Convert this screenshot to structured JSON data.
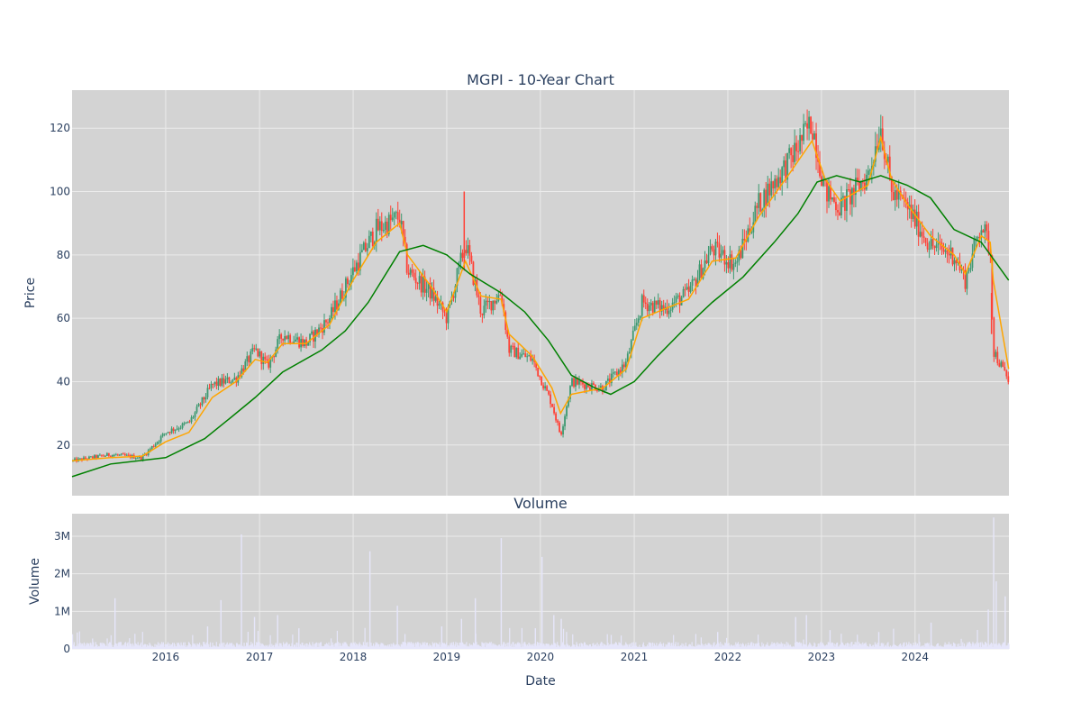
{
  "colors": {
    "plot_bg": "#d3d3d3",
    "grid": "#ebebeb",
    "candle_up": "#3d9970",
    "candle_down": "#ff4136",
    "ma_short": "#ffa500",
    "ma_long": "#008000",
    "volume_bar": "#e6e6fa"
  },
  "chart_data": [
    {
      "type": "candlestick",
      "title": "MGPI - 10-Year Chart",
      "xlabel": "",
      "ylabel": "Price",
      "xlim": [
        "2015-01-01",
        "2025-01-01"
      ],
      "ylim": [
        4,
        132
      ],
      "y_ticks": [
        20,
        40,
        60,
        80,
        100,
        120
      ],
      "grid": true,
      "legend": "none",
      "price_path": [
        [
          "2015-01-01",
          15
        ],
        [
          "2015-06-01",
          17
        ],
        [
          "2015-10-01",
          16
        ],
        [
          "2016-01-01",
          24
        ],
        [
          "2016-04-01",
          27
        ],
        [
          "2016-07-01",
          39
        ],
        [
          "2016-10-01",
          41
        ],
        [
          "2016-12-15",
          50
        ],
        [
          "2017-02-01",
          45
        ],
        [
          "2017-04-01",
          55
        ],
        [
          "2017-07-01",
          52
        ],
        [
          "2017-10-01",
          60
        ],
        [
          "2018-01-01",
          75
        ],
        [
          "2018-04-01",
          88
        ],
        [
          "2018-07-01",
          92
        ],
        [
          "2018-08-01",
          75
        ],
        [
          "2018-11-01",
          68
        ],
        [
          "2019-01-01",
          60
        ],
        [
          "2019-03-15",
          84
        ],
        [
          "2019-05-15",
          62
        ],
        [
          "2019-08-01",
          68
        ],
        [
          "2019-09-01",
          50
        ],
        [
          "2019-12-01",
          47
        ],
        [
          "2020-02-15",
          33
        ],
        [
          "2020-03-20",
          23
        ],
        [
          "2020-05-01",
          40
        ],
        [
          "2020-09-01",
          38
        ],
        [
          "2020-12-01",
          46
        ],
        [
          "2021-02-01",
          65
        ],
        [
          "2021-05-01",
          63
        ],
        [
          "2021-08-01",
          68
        ],
        [
          "2021-11-01",
          82
        ],
        [
          "2022-02-01",
          77
        ],
        [
          "2022-05-01",
          96
        ],
        [
          "2022-09-01",
          110
        ],
        [
          "2022-11-25",
          122
        ],
        [
          "2023-01-15",
          100
        ],
        [
          "2023-03-15",
          95
        ],
        [
          "2023-07-01",
          105
        ],
        [
          "2023-08-20",
          121
        ],
        [
          "2023-10-01",
          100
        ],
        [
          "2023-12-01",
          95
        ],
        [
          "2024-03-01",
          83
        ],
        [
          "2024-06-01",
          80
        ],
        [
          "2024-07-15",
          72
        ],
        [
          "2024-09-15",
          90
        ],
        [
          "2024-10-20",
          82
        ],
        [
          "2024-11-01",
          50
        ],
        [
          "2024-12-31",
          40
        ]
      ],
      "ma_short_path": [
        [
          "2015-01-01",
          15
        ],
        [
          "2015-06-01",
          16
        ],
        [
          "2015-10-01",
          16.5
        ],
        [
          "2016-01-01",
          21
        ],
        [
          "2016-04-01",
          24
        ],
        [
          "2016-07-01",
          35
        ],
        [
          "2016-10-01",
          40
        ],
        [
          "2016-12-15",
          47
        ],
        [
          "2017-02-01",
          46
        ],
        [
          "2017-04-01",
          52
        ],
        [
          "2017-07-01",
          52
        ],
        [
          "2017-10-01",
          58
        ],
        [
          "2018-01-01",
          72
        ],
        [
          "2018-04-01",
          84
        ],
        [
          "2018-07-01",
          90
        ],
        [
          "2018-08-01",
          80
        ],
        [
          "2018-11-01",
          70
        ],
        [
          "2019-01-01",
          62
        ],
        [
          "2019-03-15",
          78
        ],
        [
          "2019-05-15",
          67
        ],
        [
          "2019-08-01",
          66
        ],
        [
          "2019-09-01",
          55
        ],
        [
          "2019-12-01",
          48
        ],
        [
          "2020-02-15",
          38
        ],
        [
          "2020-03-20",
          30
        ],
        [
          "2020-05-01",
          36
        ],
        [
          "2020-09-01",
          38
        ],
        [
          "2020-12-01",
          44
        ],
        [
          "2021-02-01",
          60
        ],
        [
          "2021-05-01",
          63
        ],
        [
          "2021-08-01",
          66
        ],
        [
          "2021-11-01",
          78
        ],
        [
          "2022-02-01",
          79
        ],
        [
          "2022-05-01",
          92
        ],
        [
          "2022-09-01",
          106
        ],
        [
          "2022-11-25",
          116
        ],
        [
          "2023-01-15",
          104
        ],
        [
          "2023-03-15",
          97
        ],
        [
          "2023-07-01",
          102
        ],
        [
          "2023-08-20",
          117
        ],
        [
          "2023-10-01",
          104
        ],
        [
          "2023-12-01",
          96
        ],
        [
          "2024-03-01",
          86
        ],
        [
          "2024-06-01",
          80
        ],
        [
          "2024-07-15",
          74
        ],
        [
          "2024-09-15",
          86
        ],
        [
          "2024-10-20",
          84
        ],
        [
          "2024-11-01",
          72
        ],
        [
          "2024-12-31",
          44
        ]
      ],
      "ma_long_path": [
        [
          "2015-01-01",
          10
        ],
        [
          "2015-06-01",
          14
        ],
        [
          "2016-01-01",
          16
        ],
        [
          "2016-06-01",
          22
        ],
        [
          "2016-09-01",
          28
        ],
        [
          "2016-12-15",
          35
        ],
        [
          "2017-04-01",
          43
        ],
        [
          "2017-09-01",
          50
        ],
        [
          "2017-12-01",
          56
        ],
        [
          "2018-03-01",
          65
        ],
        [
          "2018-07-01",
          81
        ],
        [
          "2018-10-01",
          83
        ],
        [
          "2019-01-01",
          80
        ],
        [
          "2019-04-01",
          74
        ],
        [
          "2019-08-01",
          68
        ],
        [
          "2019-11-01",
          62
        ],
        [
          "2020-02-01",
          53
        ],
        [
          "2020-05-01",
          42
        ],
        [
          "2020-08-01",
          38
        ],
        [
          "2020-10-01",
          36
        ],
        [
          "2021-01-01",
          40
        ],
        [
          "2021-04-01",
          48
        ],
        [
          "2021-08-01",
          58
        ],
        [
          "2021-11-01",
          65
        ],
        [
          "2022-03-01",
          73
        ],
        [
          "2022-07-01",
          84
        ],
        [
          "2022-10-01",
          93
        ],
        [
          "2022-12-15",
          103
        ],
        [
          "2023-03-01",
          105
        ],
        [
          "2023-06-01",
          103
        ],
        [
          "2023-08-20",
          105
        ],
        [
          "2023-12-01",
          102
        ],
        [
          "2024-03-01",
          98
        ],
        [
          "2024-06-01",
          88
        ],
        [
          "2024-09-15",
          84
        ],
        [
          "2024-12-31",
          72
        ]
      ]
    },
    {
      "type": "bar",
      "title": "Volume",
      "xlabel": "Date",
      "ylabel": "Volume",
      "xlim": [
        "2015-01-01",
        "2025-01-01"
      ],
      "ylim": [
        0,
        3600000
      ],
      "y_ticks": [
        0,
        1000000,
        2000000,
        3000000
      ],
      "y_tick_labels": [
        "0",
        "1M",
        "2M",
        "3M"
      ],
      "x_ticks": [
        "2016-01-01",
        "2017-01-01",
        "2018-01-01",
        "2019-01-01",
        "2020-01-01",
        "2021-01-01",
        "2022-01-01",
        "2023-01-01",
        "2024-01-01"
      ],
      "x_tick_labels": [
        "2016",
        "2017",
        "2018",
        "2019",
        "2020",
        "2021",
        "2022",
        "2023",
        "2024"
      ],
      "grid": true,
      "baseline_volume": 90000,
      "spikes": [
        [
          "2015-06-15",
          1350000
        ],
        [
          "2016-06-10",
          600000
        ],
        [
          "2016-08-01",
          1300000
        ],
        [
          "2016-10-20",
          3050000
        ],
        [
          "2016-12-10",
          850000
        ],
        [
          "2017-03-10",
          900000
        ],
        [
          "2017-06-01",
          550000
        ],
        [
          "2018-03-05",
          2600000
        ],
        [
          "2018-06-20",
          1150000
        ],
        [
          "2018-12-10",
          600000
        ],
        [
          "2019-02-25",
          800000
        ],
        [
          "2019-04-20",
          1350000
        ],
        [
          "2019-07-30",
          2950000
        ],
        [
          "2019-12-10",
          550000
        ],
        [
          "2020-01-05",
          2450000
        ],
        [
          "2020-02-20",
          900000
        ],
        [
          "2020-03-20",
          800000
        ],
        [
          "2021-11-20",
          450000
        ],
        [
          "2022-09-20",
          850000
        ],
        [
          "2022-11-01",
          900000
        ],
        [
          "2023-02-01",
          500000
        ],
        [
          "2023-08-10",
          450000
        ],
        [
          "2024-03-01",
          700000
        ],
        [
          "2024-10-10",
          1050000
        ],
        [
          "2024-10-31",
          3500000
        ],
        [
          "2024-11-10",
          1800000
        ],
        [
          "2024-12-15",
          1400000
        ]
      ]
    }
  ]
}
